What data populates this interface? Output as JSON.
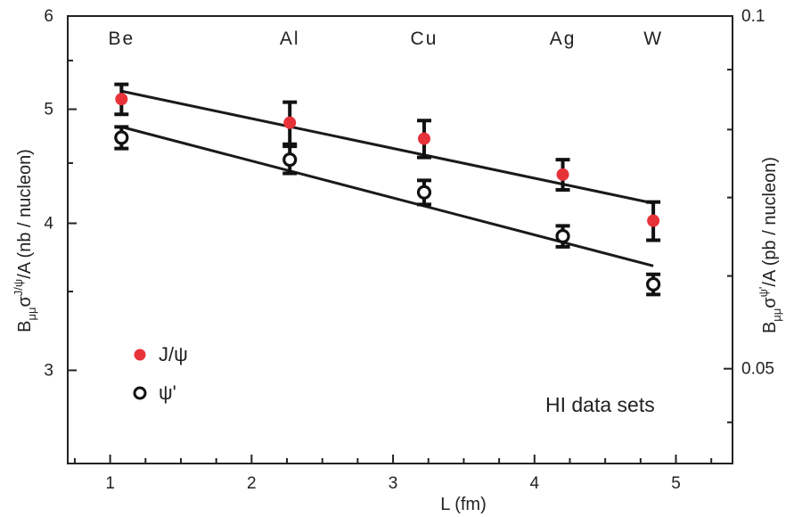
{
  "chart_data": {
    "type": "scatter",
    "title": "",
    "xlabel": "L (fm)",
    "ylabel_left": {
      "main": "B",
      "sub": "μμ",
      "sup": "J/ψ",
      "tail": "σ",
      "end": "/A (nb / nucleon)"
    },
    "ylabel_right": {
      "main": "B",
      "sub": "μμ",
      "sup": "ψ'",
      "tail": "σ",
      "end": "/A (pb / nucleon)"
    },
    "xlim": [
      0.7,
      5.4
    ],
    "ylim_left": [
      2.5,
      6.0
    ],
    "ylim_right": [
      0.0415,
      0.1
    ],
    "y_scale": "log",
    "x_ticks": [
      "1",
      "2",
      "3",
      "4",
      "5"
    ],
    "y_ticks_left": [
      "3",
      "4",
      "5",
      "6"
    ],
    "y_ticks_right": [
      "0.05",
      "0.1"
    ],
    "nuclei": [
      {
        "label": "Be",
        "L": 1.08
      },
      {
        "label": "Al",
        "L": 2.27
      },
      {
        "label": "Cu",
        "L": 3.22
      },
      {
        "label": "Ag",
        "L": 4.2
      },
      {
        "label": "W",
        "L": 4.84
      }
    ],
    "series": [
      {
        "name": "J/ψ",
        "marker": "filled-circle",
        "color": "#e8323a",
        "x": [
          1.08,
          2.27,
          3.22,
          4.2,
          4.84
        ],
        "y": [
          5.1,
          4.87,
          4.72,
          4.4,
          4.02
        ],
        "err_low": [
          0.15,
          0.2,
          0.17,
          0.13,
          0.15
        ],
        "err_high": [
          0.15,
          0.2,
          0.17,
          0.13,
          0.15
        ],
        "fit": {
          "x": [
            1.08,
            4.84
          ],
          "y": [
            5.18,
            4.16
          ]
        }
      },
      {
        "name": "ψ'",
        "marker": "open-circle",
        "color": "#111111",
        "x": [
          1.08,
          2.27,
          3.22,
          4.2,
          4.84
        ],
        "y": [
          4.73,
          4.53,
          4.25,
          3.9,
          3.55
        ],
        "err_low": [
          0.1,
          0.12,
          0.1,
          0.08,
          0.07
        ],
        "err_high": [
          0.1,
          0.12,
          0.1,
          0.08,
          0.07
        ],
        "fit": {
          "x": [
            1.08,
            4.84
          ],
          "y": [
            4.83,
            3.68
          ]
        }
      }
    ],
    "legend_position": "bottom-left",
    "annotation": "HI data sets",
    "grid": false
  }
}
